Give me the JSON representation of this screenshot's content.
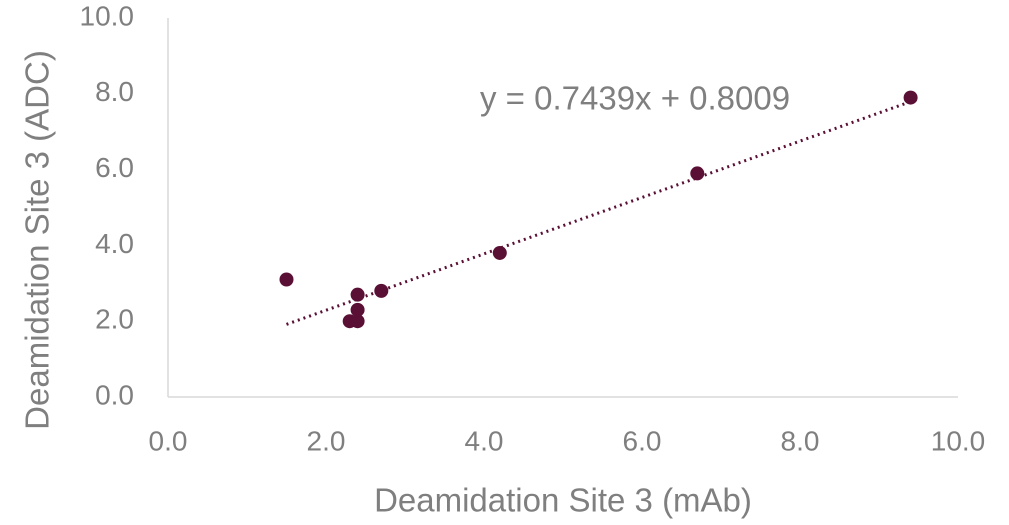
{
  "chart_data": {
    "type": "scatter",
    "x_label": "Deamidation Site 3 (mAb)",
    "y_label": "Deamidation Site 3 (ADC)",
    "x": [
      1.5,
      2.3,
      2.4,
      2.4,
      2.4,
      2.7,
      4.2,
      6.7,
      9.4
    ],
    "series": [
      {
        "color": "#5a0f34",
        "values": [
          3.1,
          2.0,
          2.0,
          2.3,
          2.7,
          2.8,
          3.8,
          5.9,
          7.9
        ]
      }
    ],
    "trendline": {
      "label": "y = 0.7439x + 0.8009",
      "slope": 0.7439,
      "intercept": 0.8009
    },
    "xlim": [
      0,
      10
    ],
    "ylim": [
      0,
      10
    ],
    "xticks": [
      {
        "value": 0,
        "label": "0.0"
      },
      {
        "value": 2,
        "label": "2.0"
      },
      {
        "value": 4,
        "label": "4.0"
      },
      {
        "value": 6,
        "label": "6.0"
      },
      {
        "value": 8,
        "label": "8.0"
      },
      {
        "value": 10,
        "label": "10.0"
      }
    ],
    "yticks": [
      {
        "value": 0,
        "label": "0.0"
      },
      {
        "value": 2,
        "label": "2.0"
      },
      {
        "value": 4,
        "label": "4.0"
      },
      {
        "value": 6,
        "label": "6.0"
      },
      {
        "value": 8,
        "label": "8.0"
      },
      {
        "value": 10,
        "label": "10.0"
      }
    ],
    "grid": false
  }
}
